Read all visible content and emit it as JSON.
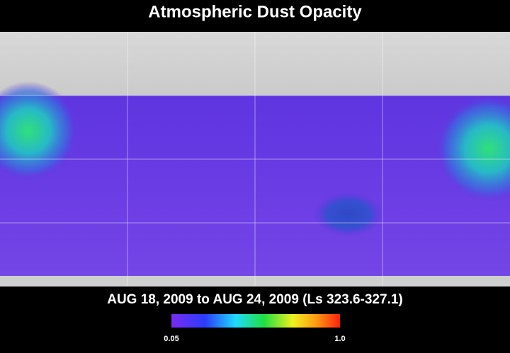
{
  "title": "Atmospheric Dust Opacity",
  "subtitle": "AUG 18, 2009 to AUG 24, 2009 (Ls 323.6-327.1)",
  "colorbar": {
    "ticks": [
      0.05,
      {
        "value": 1,
        "label": "1.0"
      }
    ]
  }
}
